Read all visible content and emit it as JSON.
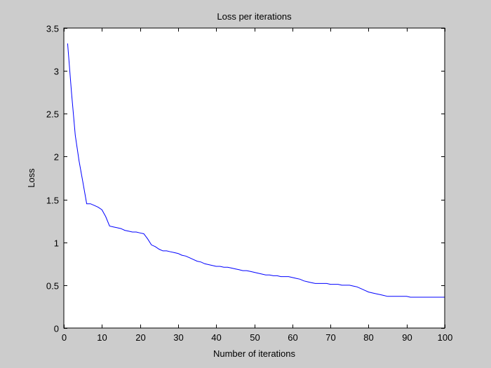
{
  "figure": {
    "background": "#cccccc",
    "axes_background": "#ffffff",
    "line_color": "#0000ff"
  },
  "chart_data": {
    "type": "line",
    "title": "Loss per iterations",
    "xlabel": "Number of iterations",
    "ylabel": "Loss",
    "xlim": [
      0,
      100
    ],
    "ylim": [
      0,
      3.5
    ],
    "xticks": [
      0,
      10,
      20,
      30,
      40,
      50,
      60,
      70,
      80,
      90,
      100
    ],
    "yticks": [
      0,
      0.5,
      1,
      1.5,
      2,
      2.5,
      3,
      3.5
    ],
    "xtick_labels": [
      "0",
      "10",
      "20",
      "30",
      "40",
      "50",
      "60",
      "70",
      "80",
      "90",
      "100"
    ],
    "ytick_labels": [
      "0",
      "0.5",
      "1",
      "1.5",
      "2",
      "2.5",
      "3",
      "3.5"
    ],
    "grid": false,
    "legend": "none",
    "series": [
      {
        "x": [
          1,
          2,
          3,
          4,
          5,
          6,
          7,
          8,
          9,
          10,
          11,
          12,
          13,
          14,
          15,
          16,
          17,
          18,
          19,
          20,
          21,
          22,
          23,
          24,
          25,
          26,
          27,
          28,
          29,
          30,
          31,
          32,
          33,
          34,
          35,
          36,
          37,
          38,
          39,
          40,
          41,
          42,
          43,
          44,
          45,
          46,
          47,
          48,
          49,
          50,
          51,
          52,
          53,
          54,
          55,
          56,
          57,
          58,
          59,
          60,
          61,
          62,
          63,
          64,
          65,
          66,
          67,
          68,
          69,
          70,
          71,
          72,
          73,
          74,
          75,
          76,
          77,
          78,
          79,
          80,
          81,
          82,
          83,
          84,
          85,
          86,
          87,
          88,
          89,
          90,
          91,
          92,
          93,
          94,
          95,
          96,
          97,
          98,
          99,
          100
        ],
        "values": [
          3.32,
          2.75,
          2.25,
          1.95,
          1.7,
          1.45,
          1.45,
          1.43,
          1.41,
          1.38,
          1.3,
          1.19,
          1.18,
          1.17,
          1.16,
          1.14,
          1.13,
          1.12,
          1.12,
          1.11,
          1.1,
          1.04,
          0.97,
          0.95,
          0.92,
          0.9,
          0.9,
          0.89,
          0.88,
          0.87,
          0.85,
          0.84,
          0.82,
          0.8,
          0.78,
          0.77,
          0.75,
          0.74,
          0.73,
          0.72,
          0.72,
          0.71,
          0.71,
          0.7,
          0.69,
          0.68,
          0.67,
          0.67,
          0.66,
          0.65,
          0.64,
          0.63,
          0.62,
          0.62,
          0.61,
          0.61,
          0.6,
          0.6,
          0.6,
          0.59,
          0.58,
          0.57,
          0.55,
          0.54,
          0.53,
          0.52,
          0.52,
          0.52,
          0.52,
          0.51,
          0.51,
          0.51,
          0.5,
          0.5,
          0.5,
          0.49,
          0.48,
          0.46,
          0.44,
          0.42,
          0.41,
          0.4,
          0.39,
          0.38,
          0.37,
          0.37,
          0.37,
          0.37,
          0.37,
          0.37,
          0.36,
          0.36,
          0.36,
          0.36,
          0.36,
          0.36,
          0.36,
          0.36,
          0.36,
          0.36
        ]
      }
    ]
  }
}
